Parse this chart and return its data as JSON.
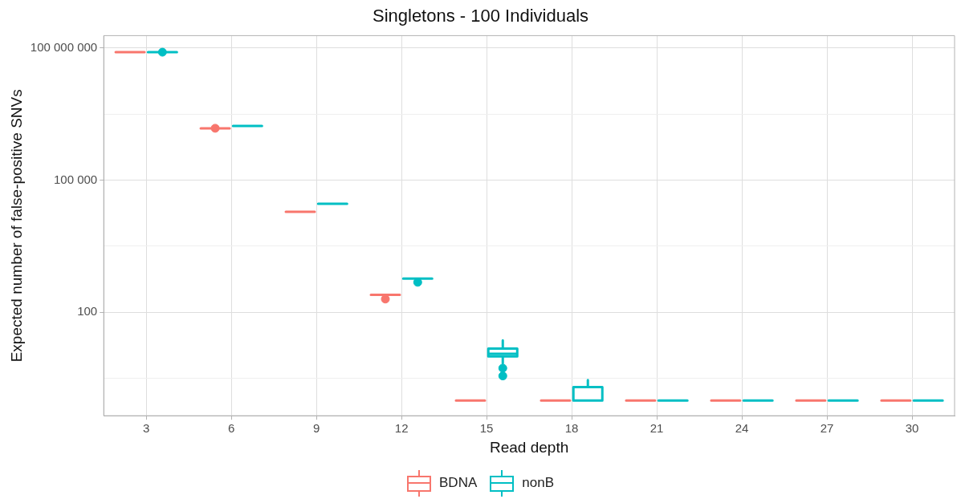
{
  "chart_data": {
    "type": "box",
    "title": "Singletons - 100 Individuals",
    "xlabel": "Read depth",
    "ylabel": "Expected number of false-positive SNVs",
    "categories": [
      "3",
      "6",
      "9",
      "12",
      "15",
      "18",
      "21",
      "24",
      "27",
      "30"
    ],
    "log": "y",
    "ylim": [
      0.45,
      190000000
    ],
    "yticks": [
      {
        "value": 3.16,
        "label": null
      },
      {
        "value": 100,
        "label": "100"
      },
      {
        "value": 3160,
        "label": null
      },
      {
        "value": 100000,
        "label": "100 000"
      },
      {
        "value": 3160000,
        "label": null
      },
      {
        "value": 100000000,
        "label": "100 000 000"
      }
    ],
    "grid": true,
    "legend": "bottom",
    "series": [
      {
        "name": "BDNA",
        "color": "#f8766d",
        "boxes": [
          {
            "low": 80000000,
            "q1": 80000000,
            "median": 80000000,
            "q3": 80000000,
            "high": 80000000
          },
          {
            "low": 1500000,
            "q1": 1500000,
            "median": 1500000,
            "q3": 1500000,
            "high": 1500000,
            "outliers": [
              1500000
            ]
          },
          {
            "low": 19000,
            "q1": 19000,
            "median": 19000,
            "q3": 19000,
            "high": 19000
          },
          {
            "low": 250,
            "q1": 250,
            "median": 250,
            "q3": 250,
            "high": 250,
            "outliers": [
              200
            ]
          },
          {
            "low": 1,
            "q1": 1,
            "median": 1,
            "q3": 1,
            "high": 1
          },
          {
            "low": 1,
            "q1": 1,
            "median": 1,
            "q3": 1,
            "high": 1
          },
          {
            "low": 1,
            "q1": 1,
            "median": 1,
            "q3": 1,
            "high": 1
          },
          {
            "low": 1,
            "q1": 1,
            "median": 1,
            "q3": 1,
            "high": 1
          },
          {
            "low": 1,
            "q1": 1,
            "median": 1,
            "q3": 1,
            "high": 1
          },
          {
            "low": 1,
            "q1": 1,
            "median": 1,
            "q3": 1,
            "high": 1
          }
        ]
      },
      {
        "name": "nonB",
        "color": "#00bfc4",
        "boxes": [
          {
            "low": 80000000,
            "q1": 80000000,
            "median": 80000000,
            "q3": 80000000,
            "high": 80000000,
            "outliers": [
              80000000
            ]
          },
          {
            "low": 1700000,
            "q1": 1700000,
            "median": 1700000,
            "q3": 1700000,
            "high": 1700000
          },
          {
            "low": 29000,
            "q1": 29000,
            "median": 29000,
            "q3": 29000,
            "high": 29000
          },
          {
            "low": 580,
            "q1": 580,
            "median": 580,
            "q3": 580,
            "high": 580,
            "outliers": [
              480
            ]
          },
          {
            "low": 7,
            "q1": 10,
            "median": 11.5,
            "q3": 15,
            "high": 23,
            "outliers": [
              5.4,
              3.6
            ]
          },
          {
            "low": 1,
            "q1": 1,
            "median": 1,
            "q3": 2,
            "high": 2.9
          },
          {
            "low": 1,
            "q1": 1,
            "median": 1,
            "q3": 1,
            "high": 1
          },
          {
            "low": 1,
            "q1": 1,
            "median": 1,
            "q3": 1,
            "high": 1
          },
          {
            "low": 1,
            "q1": 1,
            "median": 1,
            "q3": 1,
            "high": 1
          },
          {
            "low": 1,
            "q1": 1,
            "median": 1,
            "q3": 1,
            "high": 1
          }
        ]
      }
    ]
  }
}
